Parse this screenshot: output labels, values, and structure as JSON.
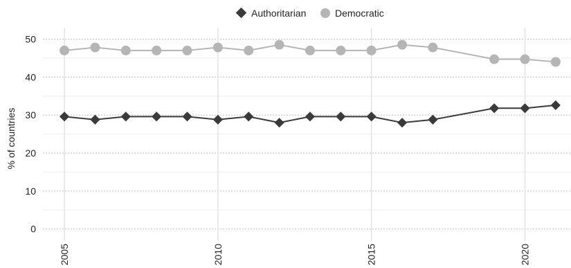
{
  "chart_data": {
    "type": "line",
    "x": [
      2005,
      2006,
      2007,
      2008,
      2009,
      2010,
      2011,
      2012,
      2013,
      2014,
      2015,
      2016,
      2017,
      2019,
      2020,
      2021
    ],
    "series": [
      {
        "name": "Authoritarian",
        "marker": "diamond",
        "color": "#3a3a3a",
        "values": [
          29.6,
          28.8,
          29.6,
          29.6,
          29.6,
          28.8,
          29.6,
          28.0,
          29.6,
          29.6,
          29.6,
          28.0,
          28.8,
          31.8,
          31.8,
          32.6
        ]
      },
      {
        "name": "Democratic",
        "marker": "circle",
        "color": "#b5b5b5",
        "values": [
          47.0,
          47.8,
          47.0,
          47.0,
          47.0,
          47.8,
          47.0,
          48.5,
          47.0,
          47.0,
          47.0,
          48.5,
          47.8,
          44.7,
          44.7,
          44.0
        ]
      }
    ],
    "xlabel": "",
    "ylabel": "% of countries",
    "ylim": [
      0,
      50
    ],
    "yticks": [
      0,
      10,
      20,
      30,
      40,
      50
    ],
    "xticks": [
      "2005",
      "2010",
      "2015",
      "2020"
    ],
    "grid": true,
    "legend_position": "top"
  }
}
